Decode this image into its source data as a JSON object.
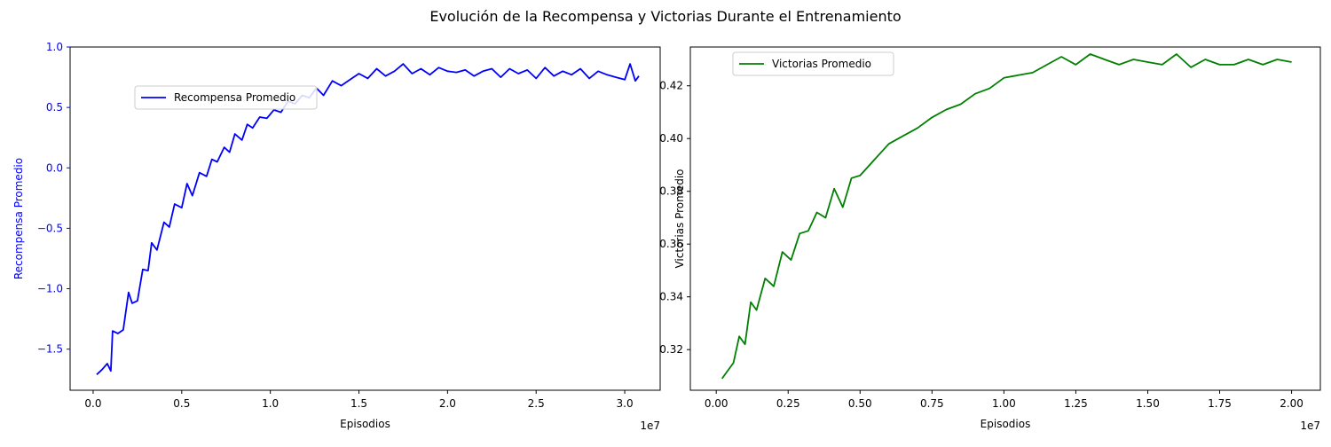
{
  "figure": {
    "suptitle": "Evolución de la Recompensa y Victorias Durante el Entrenamiento"
  },
  "chart_data": [
    {
      "type": "line",
      "title": "",
      "xlabel": "Episodios",
      "ylabel": "Recompensa Promedio",
      "x_offset_label": "1e7",
      "xlim": [
        -0.13,
        3.2
      ],
      "ylim": [
        -1.84,
        1.0
      ],
      "x_ticks": [
        0.0,
        0.5,
        1.0,
        1.5,
        2.0,
        2.5,
        3.0
      ],
      "x_tick_labels": [
        "0.0",
        "0.5",
        "1.0",
        "1.5",
        "2.0",
        "2.5",
        "3.0"
      ],
      "y_ticks": [
        -1.5,
        -1.0,
        -0.5,
        0.0,
        0.5,
        1.0
      ],
      "y_tick_labels": [
        "−1.5",
        "−1.0",
        "−0.5",
        "0.0",
        "0.5",
        "1.0"
      ],
      "grid": false,
      "legend_position": "upper-left",
      "axis_color": "#0000ff",
      "series": [
        {
          "name": "Recompensa Promedio",
          "color": "#0000ff",
          "x": [
            0.02,
            0.05,
            0.08,
            0.1,
            0.11,
            0.14,
            0.17,
            0.2,
            0.22,
            0.25,
            0.28,
            0.31,
            0.33,
            0.36,
            0.4,
            0.43,
            0.46,
            0.5,
            0.53,
            0.56,
            0.6,
            0.64,
            0.67,
            0.7,
            0.74,
            0.77,
            0.8,
            0.84,
            0.87,
            0.9,
            0.94,
            0.98,
            1.02,
            1.06,
            1.1,
            1.14,
            1.18,
            1.22,
            1.26,
            1.3,
            1.35,
            1.4,
            1.45,
            1.5,
            1.55,
            1.6,
            1.65,
            1.7,
            1.75,
            1.8,
            1.85,
            1.9,
            1.95,
            2.0,
            2.05,
            2.1,
            2.15,
            2.2,
            2.25,
            2.3,
            2.35,
            2.4,
            2.45,
            2.5,
            2.55,
            2.6,
            2.65,
            2.7,
            2.75,
            2.8,
            2.85,
            2.9,
            2.95,
            3.0,
            3.03,
            3.06,
            3.08
          ],
          "values": [
            -1.71,
            -1.67,
            -1.62,
            -1.68,
            -1.35,
            -1.37,
            -1.34,
            -1.03,
            -1.12,
            -1.1,
            -0.84,
            -0.85,
            -0.62,
            -0.68,
            -0.45,
            -0.49,
            -0.3,
            -0.33,
            -0.13,
            -0.23,
            -0.04,
            -0.07,
            0.07,
            0.05,
            0.17,
            0.13,
            0.28,
            0.23,
            0.36,
            0.33,
            0.42,
            0.41,
            0.48,
            0.46,
            0.55,
            0.53,
            0.6,
            0.58,
            0.66,
            0.6,
            0.72,
            0.68,
            0.73,
            0.78,
            0.74,
            0.82,
            0.76,
            0.8,
            0.86,
            0.78,
            0.82,
            0.77,
            0.83,
            0.8,
            0.79,
            0.81,
            0.76,
            0.8,
            0.82,
            0.75,
            0.82,
            0.78,
            0.81,
            0.74,
            0.83,
            0.76,
            0.8,
            0.77,
            0.82,
            0.74,
            0.8,
            0.77,
            0.75,
            0.73,
            0.86,
            0.72,
            0.76
          ]
        }
      ]
    },
    {
      "type": "line",
      "title": "",
      "xlabel": "Episodios",
      "ylabel": "Victorias Promedio",
      "x_offset_label": "1e7",
      "xlim": [
        -0.09,
        2.1
      ],
      "ylim": [
        0.3046,
        0.4347
      ],
      "x_ticks": [
        0.0,
        0.25,
        0.5,
        0.75,
        1.0,
        1.25,
        1.5,
        1.75,
        2.0
      ],
      "x_tick_labels": [
        "0.00",
        "0.25",
        "0.50",
        "0.75",
        "1.00",
        "1.25",
        "1.50",
        "1.75",
        "2.00"
      ],
      "y_ticks": [
        0.32,
        0.34,
        0.36,
        0.38,
        0.4,
        0.42
      ],
      "y_tick_labels": [
        "0.32",
        "0.34",
        "0.36",
        "0.38",
        "0.40",
        "0.42"
      ],
      "grid": false,
      "legend_position": "upper-left",
      "axis_color": "#000000",
      "series": [
        {
          "name": "Victorias Promedio",
          "color": "#008000",
          "x": [
            0.02,
            0.04,
            0.06,
            0.08,
            0.1,
            0.12,
            0.14,
            0.17,
            0.2,
            0.23,
            0.26,
            0.29,
            0.32,
            0.35,
            0.38,
            0.41,
            0.44,
            0.47,
            0.5,
            0.55,
            0.6,
            0.65,
            0.7,
            0.75,
            0.8,
            0.85,
            0.9,
            0.95,
            1.0,
            1.05,
            1.1,
            1.15,
            1.2,
            1.25,
            1.3,
            1.35,
            1.4,
            1.45,
            1.5,
            1.55,
            1.6,
            1.65,
            1.7,
            1.75,
            1.8,
            1.85,
            1.9,
            1.95,
            2.0
          ],
          "values": [
            0.309,
            0.312,
            0.315,
            0.325,
            0.322,
            0.338,
            0.335,
            0.347,
            0.344,
            0.357,
            0.354,
            0.364,
            0.365,
            0.372,
            0.37,
            0.381,
            0.374,
            0.385,
            0.386,
            0.392,
            0.398,
            0.401,
            0.404,
            0.408,
            0.411,
            0.413,
            0.417,
            0.419,
            0.423,
            0.424,
            0.425,
            0.428,
            0.431,
            0.428,
            0.432,
            0.43,
            0.428,
            0.43,
            0.429,
            0.428,
            0.432,
            0.427,
            0.43,
            0.428,
            0.428,
            0.43,
            0.428,
            0.43,
            0.429
          ]
        }
      ]
    }
  ]
}
